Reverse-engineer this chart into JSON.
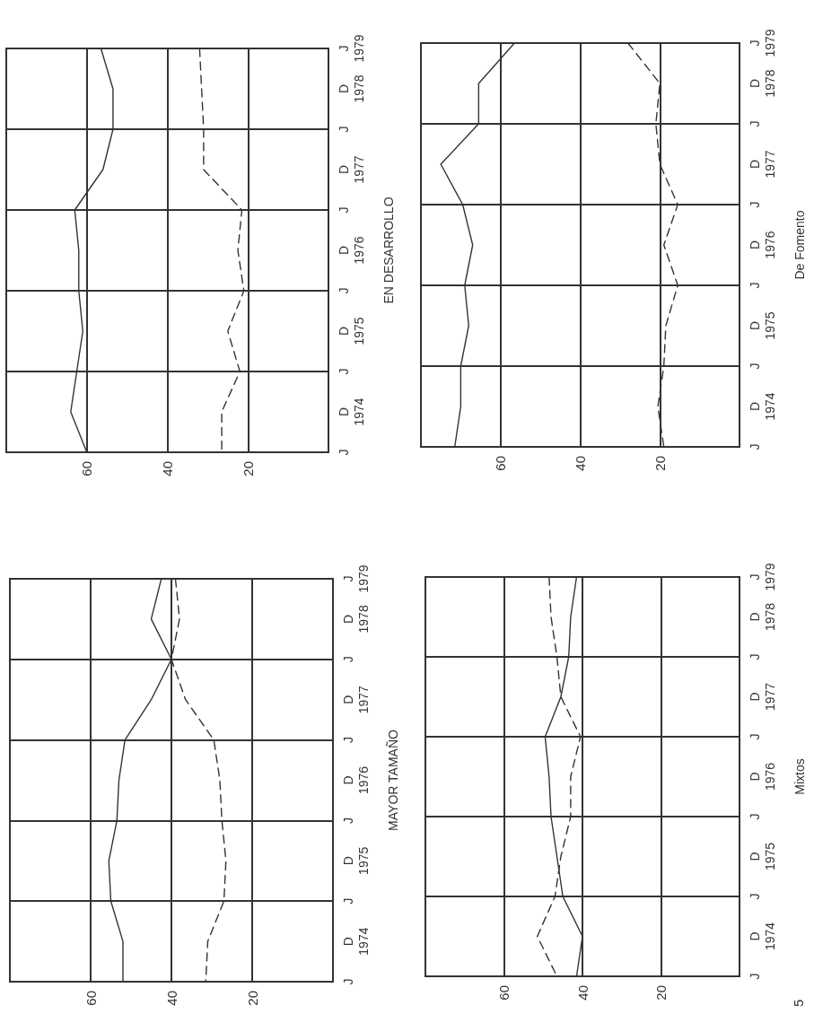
{
  "chart_data": [
    {
      "type": "line",
      "orientation": "horizontal",
      "ylabel": "EN DESARROLLO",
      "categories": [
        "J\n1979",
        "D\n1978",
        "J",
        "D\n1977",
        "J",
        "D\n1976",
        "J",
        "D\n1975",
        "J",
        "D\n1974",
        "J"
      ],
      "xlim": [
        80,
        0
      ],
      "xticks": [
        20,
        40,
        60
      ],
      "grid": true,
      "marker": "none",
      "series": [
        {
          "color": "#333333",
          "line_style": "solid",
          "values": [
            56.5,
            53.5,
            53.5,
            56,
            63,
            62,
            62,
            61,
            62.5,
            64,
            60
          ]
        },
        {
          "color": "#333333",
          "line_style": "dashed",
          "values": [
            32,
            31.5,
            31,
            31,
            21.5,
            22.5,
            21,
            25,
            22,
            26.5,
            26.5
          ]
        }
      ]
    },
    {
      "type": "line",
      "orientation": "horizontal",
      "ylabel": "De Fomento",
      "categories": [
        "J\n1979",
        "D\n1978",
        "J",
        "D\n1977",
        "J",
        "D\n1976",
        "J",
        "D\n1975",
        "J",
        "D\n1974",
        "J"
      ],
      "xlim": [
        80,
        0
      ],
      "xticks": [
        20,
        40,
        60
      ],
      "grid": true,
      "marker": "none",
      "series": [
        {
          "color": "#333333",
          "line_style": "solid",
          "values": [
            56.5,
            65.5,
            65.5,
            75,
            69.5,
            67,
            69,
            68,
            70,
            70,
            71.5
          ]
        },
        {
          "color": "#333333",
          "line_style": "dashed",
          "values": [
            28,
            20,
            21,
            20,
            15.5,
            19,
            15.5,
            18.5,
            19,
            20.5,
            19
          ]
        }
      ]
    },
    {
      "type": "line",
      "orientation": "horizontal",
      "ylabel": "MAYOR TAMAÑO",
      "categories": [
        "J\n1979",
        "D\n1978",
        "J",
        "D\n1977",
        "J",
        "D\n1976",
        "J",
        "D\n1975",
        "J",
        "D\n1974",
        "J"
      ],
      "xlim": [
        80,
        0
      ],
      "xticks": [
        20,
        40,
        60
      ],
      "grid": true,
      "marker": "none",
      "series": [
        {
          "color": "#333333",
          "line_style": "solid",
          "values": [
            42.5,
            45,
            40,
            45,
            51.5,
            53,
            53.5,
            55.5,
            55,
            52,
            52
          ]
        },
        {
          "color": "#333333",
          "line_style": "dashed",
          "values": [
            39,
            38,
            40,
            36.5,
            29.5,
            28,
            27.5,
            26.5,
            27,
            31,
            31.5
          ]
        }
      ]
    },
    {
      "type": "line",
      "orientation": "horizontal",
      "ylabel": "Mixtos",
      "annotations": [
        "5"
      ],
      "categories": [
        "J\n1979",
        "D\n1978",
        "J",
        "D\n1977",
        "J",
        "D\n1976",
        "J",
        "D\n1975",
        "J",
        "D\n1974",
        "J"
      ],
      "xlim": [
        80,
        0
      ],
      "xticks": [
        20,
        40,
        60
      ],
      "grid": true,
      "marker": "none",
      "series": [
        {
          "color": "#333333",
          "line_style": "solid",
          "values": [
            41.5,
            43,
            43.5,
            45.5,
            49.5,
            48.5,
            48,
            46.5,
            45,
            40,
            41.5
          ]
        },
        {
          "color": "#333333",
          "line_style": "dashed",
          "values": [
            48.5,
            48,
            46.5,
            45.5,
            40.5,
            43,
            43,
            45.5,
            47,
            51.5,
            46.5
          ]
        }
      ]
    }
  ]
}
